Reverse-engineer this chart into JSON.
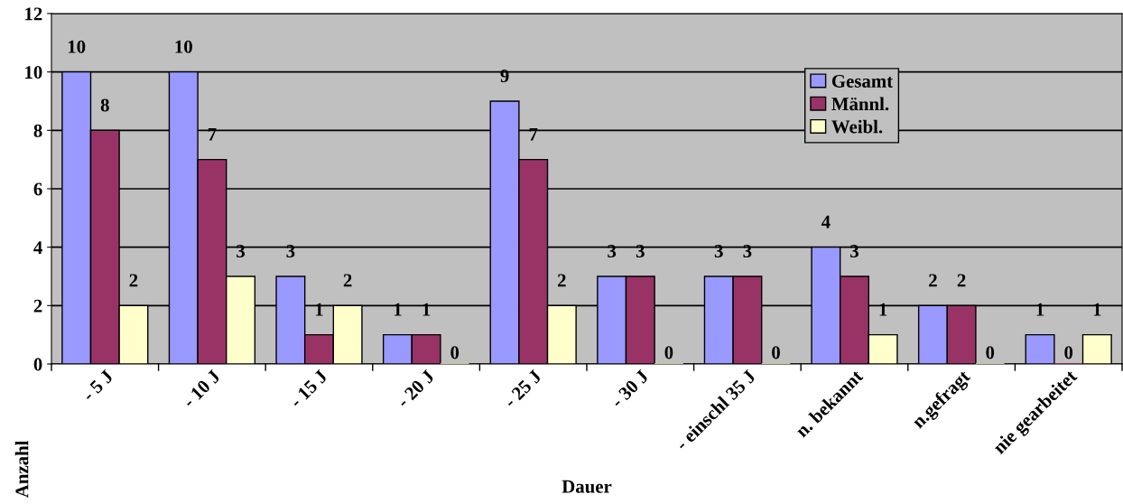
{
  "chart_data": {
    "type": "bar",
    "xlabel": "Dauer",
    "ylabel": "Anzahl",
    "categories": [
      "- 5 J",
      "- 10 J",
      "- 15 J",
      "- 20 J",
      "- 25 J",
      "- 30 J",
      "- einschl 35 J",
      "n. bekannt",
      "n.gefragt",
      "nie gearbeitet"
    ],
    "series": [
      {
        "name": "Gesamt",
        "color": "#9999ff",
        "values": [
          10,
          10,
          3,
          1,
          9,
          3,
          3,
          4,
          2,
          1
        ]
      },
      {
        "name": "Männl.",
        "color": "#993366",
        "values": [
          8,
          7,
          1,
          1,
          7,
          3,
          3,
          3,
          2,
          0
        ]
      },
      {
        "name": "Weibl.",
        "color": "#ffffcc",
        "values": [
          2,
          3,
          2,
          0,
          2,
          0,
          0,
          1,
          0,
          1
        ]
      }
    ],
    "ylim": [
      0,
      12
    ],
    "yticks": [
      0,
      2,
      4,
      6,
      8,
      10,
      12
    ],
    "grid": "y",
    "legend": "top right",
    "data_labels": true
  }
}
